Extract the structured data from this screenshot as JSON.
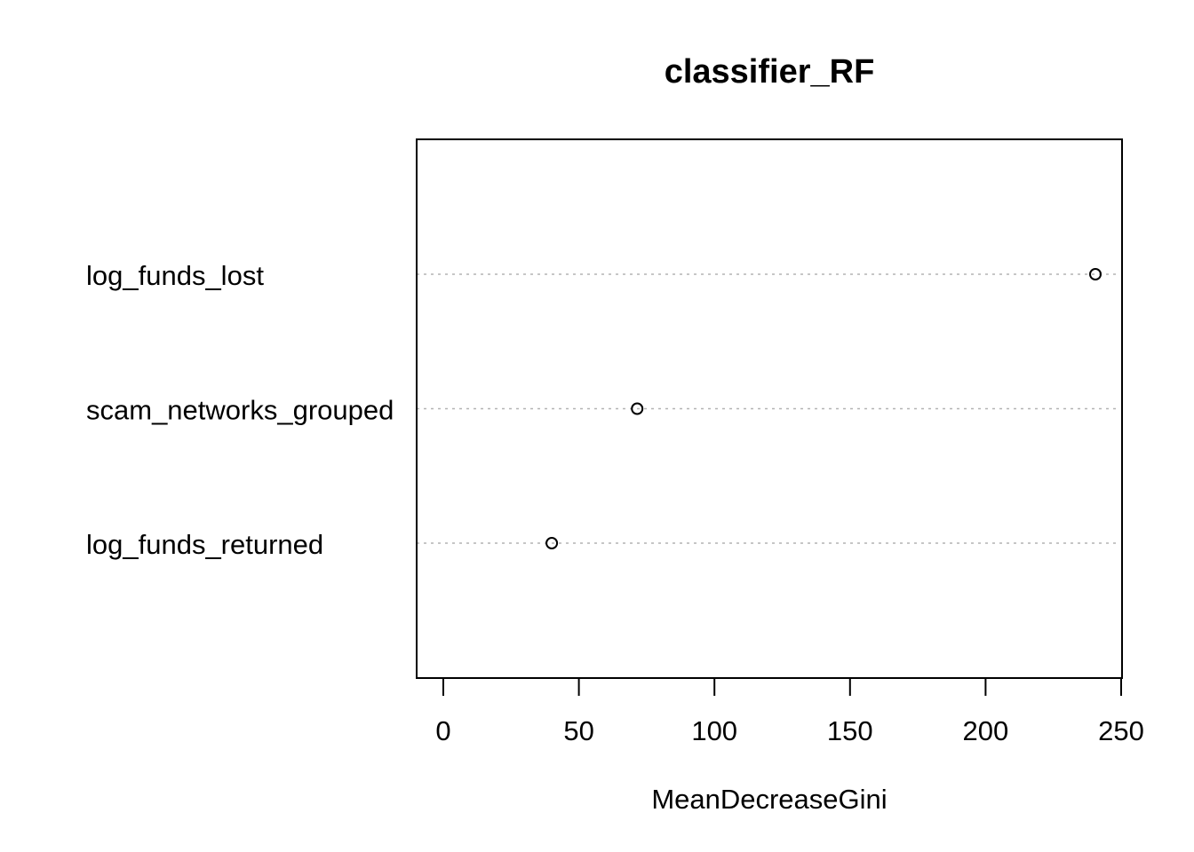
{
  "chart_data": {
    "type": "scatter",
    "title": "classifier_RF",
    "xlabel": "MeanDecreaseGini",
    "ylabel": "",
    "categories": [
      "log_funds_lost",
      "scam_networks_grouped",
      "log_funds_returned"
    ],
    "values": [
      240.5,
      71.5,
      40
    ],
    "xlim": [
      -10,
      250
    ],
    "xticks": [
      0,
      50,
      100,
      150,
      200,
      250
    ],
    "grid": "dotted horizontal guides",
    "legend": "none"
  }
}
